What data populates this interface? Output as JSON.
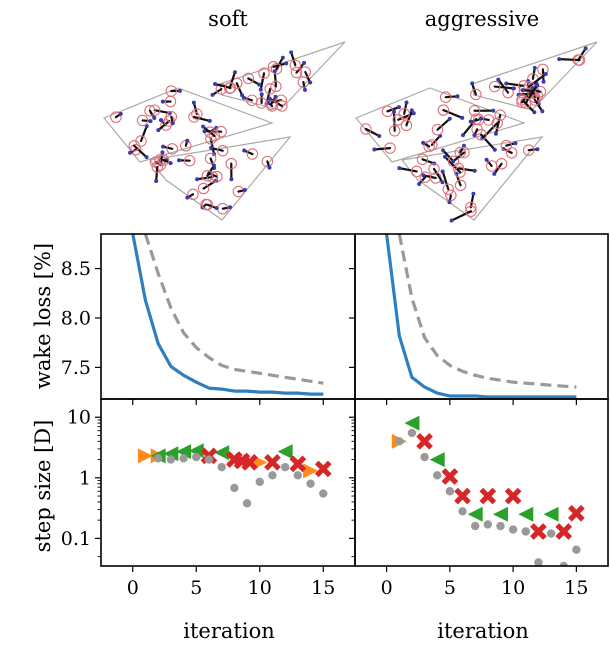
{
  "columns": [
    "soft",
    "aggressive"
  ],
  "xlabel": "iteration",
  "chart_data": [
    {
      "type": "line",
      "panel": "wake-loss-soft",
      "ylabel": "wake loss [%]",
      "xlim": [
        -2.5,
        17.5
      ],
      "ylim": [
        7.18,
        8.85
      ],
      "xticks": [
        0,
        5,
        10,
        15
      ],
      "yticks": [
        7.5,
        8.0,
        8.5
      ],
      "ytick_labels": [
        "7.5",
        "8.0",
        "8.5"
      ],
      "series": [
        {
          "style": "solid",
          "color": "#2f7fbf",
          "x": [
            0,
            1,
            2,
            3,
            4,
            5,
            6,
            7,
            8,
            9,
            10,
            11,
            12,
            13,
            14,
            15
          ],
          "y": [
            8.85,
            8.18,
            7.74,
            7.51,
            7.42,
            7.35,
            7.29,
            7.28,
            7.26,
            7.26,
            7.25,
            7.25,
            7.24,
            7.24,
            7.23,
            7.23
          ]
        },
        {
          "style": "dashed",
          "color": "#999999",
          "x": [
            1,
            2,
            3,
            4,
            5,
            6,
            7,
            8,
            9,
            10,
            11,
            12,
            13,
            14,
            15
          ],
          "y": [
            8.85,
            8.45,
            8.1,
            7.85,
            7.7,
            7.6,
            7.52,
            7.48,
            7.46,
            7.44,
            7.42,
            7.4,
            7.38,
            7.36,
            7.34
          ]
        }
      ]
    },
    {
      "type": "line",
      "panel": "wake-loss-aggressive",
      "xlim": [
        -2.5,
        17.5
      ],
      "ylim": [
        7.18,
        8.85
      ],
      "xticks": [
        0,
        5,
        10,
        15
      ],
      "series": [
        {
          "style": "solid",
          "color": "#2f7fbf",
          "x": [
            0,
            1,
            2,
            3,
            4,
            5,
            6,
            7,
            8,
            9,
            10,
            11,
            12,
            13,
            14,
            15
          ],
          "y": [
            8.85,
            7.82,
            7.4,
            7.3,
            7.24,
            7.21,
            7.21,
            7.21,
            7.2,
            7.2,
            7.2,
            7.2,
            7.2,
            7.2,
            7.2,
            7.2
          ]
        },
        {
          "style": "dashed",
          "color": "#999999",
          "x": [
            1,
            2,
            3,
            4,
            5,
            6,
            7,
            8,
            9,
            10,
            11,
            12,
            13,
            14,
            15
          ],
          "y": [
            8.85,
            8.2,
            7.8,
            7.62,
            7.52,
            7.46,
            7.42,
            7.39,
            7.37,
            7.35,
            7.34,
            7.33,
            7.32,
            7.31,
            7.3
          ]
        }
      ]
    },
    {
      "type": "scatter",
      "panel": "step-size-soft",
      "ylabel": "step size [D]",
      "yscale": "log",
      "xlim": [
        -2.5,
        17.5
      ],
      "ylim": [
        0.035,
        20
      ],
      "xticks": [
        0,
        5,
        10,
        15
      ],
      "yticks": [
        0.1,
        1,
        10
      ],
      "ytick_labels": [
        "0.1",
        "1",
        "10"
      ],
      "series": [
        {
          "marker": "triangle-right",
          "color": "#ff8c1a",
          "x": [
            1,
            2,
            10,
            14
          ],
          "y": [
            2.3,
            2.3,
            1.8,
            1.3
          ]
        },
        {
          "marker": "triangle-left",
          "color": "#2ca02c",
          "x": [
            2,
            3,
            4,
            5,
            7,
            12
          ],
          "y": [
            2.3,
            2.5,
            2.7,
            2.8,
            2.6,
            2.7
          ]
        },
        {
          "marker": "cross",
          "color": "#d62728",
          "x": [
            6,
            8,
            8.6,
            9.2,
            11,
            13,
            15
          ],
          "y": [
            2.3,
            2.0,
            1.9,
            1.8,
            1.8,
            1.7,
            1.4
          ]
        },
        {
          "marker": "dot",
          "color": "#999999",
          "x": [
            2,
            3,
            4,
            5,
            6,
            7,
            8,
            9,
            10,
            11,
            12,
            13,
            14,
            15
          ],
          "y": [
            2.1,
            2.0,
            2.1,
            2.2,
            2.0,
            1.5,
            0.68,
            0.38,
            0.86,
            1.1,
            1.5,
            1.1,
            0.8,
            0.55
          ]
        }
      ]
    },
    {
      "type": "scatter",
      "panel": "step-size-aggressive",
      "yscale": "log",
      "xlim": [
        -2.5,
        17.5
      ],
      "ylim": [
        0.035,
        20
      ],
      "xticks": [
        0,
        5,
        10,
        15
      ],
      "series": [
        {
          "marker": "triangle-right",
          "color": "#ff8c1a",
          "x": [
            1
          ],
          "y": [
            4.0
          ]
        },
        {
          "marker": "triangle-left",
          "color": "#2ca02c",
          "x": [
            2,
            4,
            7,
            9,
            11,
            13
          ],
          "y": [
            8.0,
            2.0,
            0.25,
            0.25,
            0.25,
            0.25
          ]
        },
        {
          "marker": "cross",
          "color": "#d62728",
          "x": [
            3,
            5,
            6,
            8,
            10,
            12,
            14,
            15
          ],
          "y": [
            4.0,
            1.05,
            0.5,
            0.5,
            0.5,
            0.13,
            0.13,
            0.26
          ]
        },
        {
          "marker": "dot",
          "color": "#999999",
          "x": [
            1,
            2,
            3,
            4,
            5,
            6,
            7,
            8,
            9,
            10,
            11,
            12,
            13,
            14,
            15
          ],
          "y": [
            4.0,
            5.5,
            2.2,
            1.1,
            0.6,
            0.28,
            0.16,
            0.17,
            0.16,
            0.14,
            0.13,
            0.04,
            0.12,
            0.035,
            0.065
          ]
        }
      ]
    }
  ]
}
